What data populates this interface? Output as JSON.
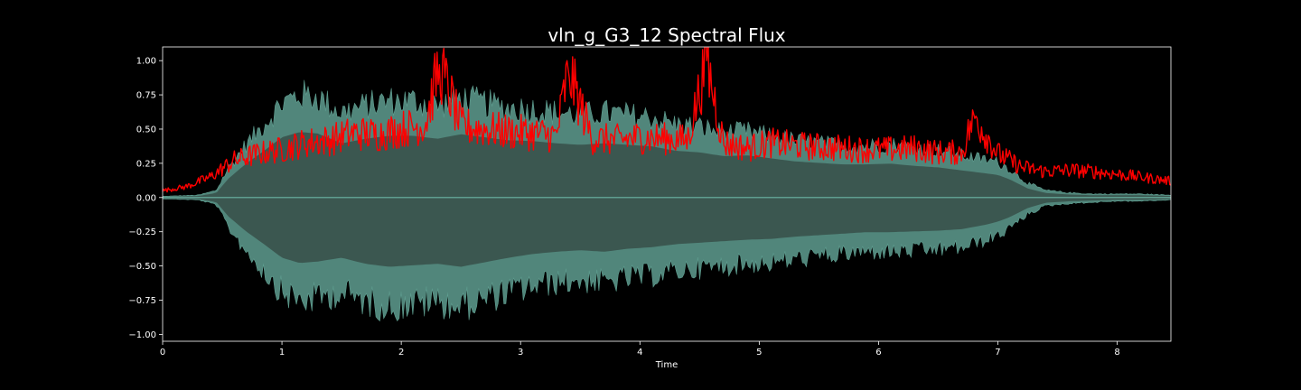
{
  "chart_data": {
    "type": "line",
    "title": "vln_g_G3_12 Spectral Flux",
    "xlabel": "Time",
    "ylabel": "",
    "xlim": [
      0,
      8.45
    ],
    "ylim": [
      -1.05,
      1.1
    ],
    "x_ticks": [
      0,
      1,
      2,
      3,
      4,
      5,
      6,
      7,
      8
    ],
    "x_tick_labels": [
      "0",
      "1",
      "2",
      "3",
      "4",
      "5",
      "6",
      "7",
      "8"
    ],
    "y_ticks": [
      1.0,
      0.75,
      0.5,
      0.25,
      0.0,
      -0.25,
      -0.5,
      -0.75,
      -1.0
    ],
    "y_tick_labels": [
      "1.00",
      "0.75",
      "0.50",
      "0.25",
      "0.00",
      "−0.25",
      "−0.50",
      "−0.75",
      "−1.00"
    ],
    "grid": false,
    "series": [
      {
        "role": "waveform-envelope",
        "color": "#5f9e90",
        "fill": "#3b5750",
        "x": [
          0,
          0.3,
          0.45,
          0.55,
          0.7,
          0.85,
          1.0,
          1.15,
          1.3,
          1.5,
          1.7,
          1.9,
          2.1,
          2.3,
          2.5,
          2.7,
          2.9,
          3.1,
          3.3,
          3.5,
          3.7,
          3.9,
          4.1,
          4.3,
          4.5,
          4.7,
          4.9,
          5.1,
          5.3,
          5.5,
          5.7,
          5.9,
          6.1,
          6.3,
          6.5,
          6.7,
          6.9,
          7.0,
          7.1,
          7.25,
          7.4,
          7.6,
          7.8,
          8.0,
          8.2,
          8.45
        ],
        "upper": [
          0.01,
          0.02,
          0.06,
          0.25,
          0.45,
          0.62,
          0.8,
          0.87,
          0.85,
          0.72,
          0.78,
          0.82,
          0.82,
          0.78,
          0.84,
          0.8,
          0.76,
          0.75,
          0.72,
          0.7,
          0.72,
          0.7,
          0.68,
          0.62,
          0.6,
          0.55,
          0.56,
          0.52,
          0.48,
          0.46,
          0.44,
          0.44,
          0.45,
          0.42,
          0.4,
          0.36,
          0.32,
          0.3,
          0.24,
          0.12,
          0.06,
          0.04,
          0.03,
          0.03,
          0.03,
          0.02
        ],
        "lower": [
          -0.01,
          -0.02,
          -0.06,
          -0.25,
          -0.45,
          -0.62,
          -0.8,
          -0.87,
          -0.85,
          -0.8,
          -0.88,
          -0.92,
          -0.9,
          -0.88,
          -0.92,
          -0.86,
          -0.8,
          -0.75,
          -0.72,
          -0.7,
          -0.72,
          -0.68,
          -0.66,
          -0.62,
          -0.6,
          -0.58,
          -0.56,
          -0.55,
          -0.52,
          -0.5,
          -0.48,
          -0.46,
          -0.46,
          -0.45,
          -0.44,
          -0.42,
          -0.36,
          -0.32,
          -0.26,
          -0.14,
          -0.07,
          -0.05,
          -0.04,
          -0.03,
          -0.03,
          -0.02
        ]
      },
      {
        "role": "spectral-flux",
        "color": "#ff0000",
        "x": [
          0,
          0.2,
          0.4,
          0.6,
          0.8,
          1.0,
          1.2,
          1.4,
          1.6,
          1.8,
          2.0,
          2.2,
          2.32,
          2.5,
          2.7,
          2.9,
          3.1,
          3.3,
          3.4,
          3.6,
          3.8,
          4.0,
          4.2,
          4.4,
          4.56,
          4.7,
          4.9,
          5.1,
          5.3,
          5.5,
          5.7,
          5.9,
          6.1,
          6.3,
          6.5,
          6.7,
          6.8,
          7.0,
          7.2,
          7.4,
          7.6,
          7.8,
          8.0,
          8.2,
          8.45
        ],
        "values": [
          0.05,
          0.08,
          0.15,
          0.27,
          0.32,
          0.35,
          0.4,
          0.42,
          0.47,
          0.46,
          0.5,
          0.53,
          0.97,
          0.52,
          0.5,
          0.48,
          0.47,
          0.45,
          0.93,
          0.43,
          0.42,
          0.44,
          0.43,
          0.42,
          1.0,
          0.4,
          0.36,
          0.4,
          0.38,
          0.37,
          0.36,
          0.35,
          0.35,
          0.36,
          0.33,
          0.33,
          0.6,
          0.32,
          0.22,
          0.19,
          0.2,
          0.19,
          0.17,
          0.15,
          0.12
        ]
      }
    ]
  }
}
